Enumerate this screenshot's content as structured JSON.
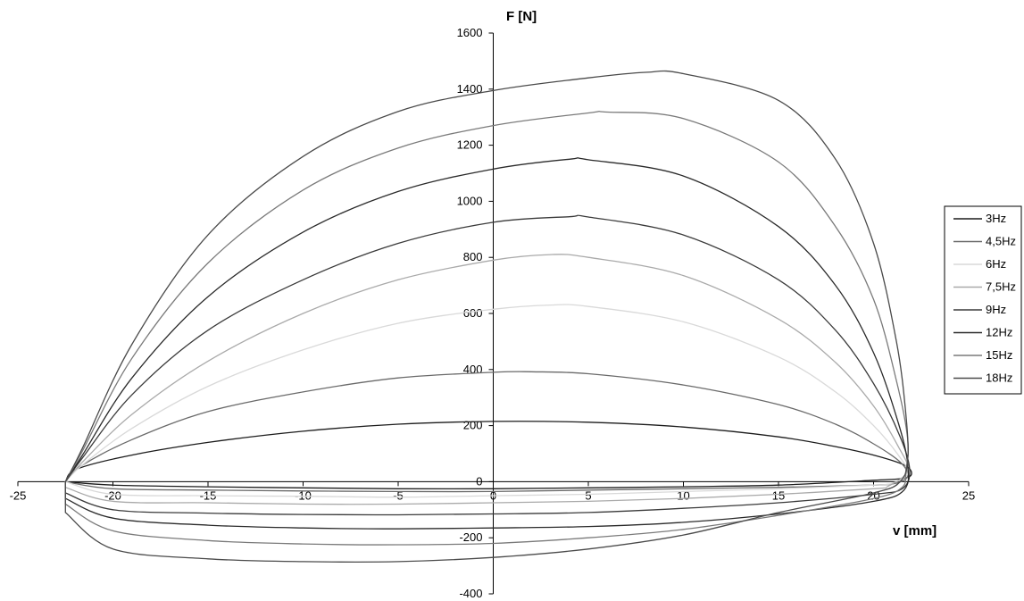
{
  "chart_data": {
    "type": "line",
    "title": "",
    "xlabel": "v [mm]",
    "ylabel": "F [N]",
    "xlim": [
      -25,
      25
    ],
    "ylim": [
      -400,
      1600
    ],
    "xticks": [
      -25,
      -20,
      -15,
      -10,
      -5,
      0,
      5,
      10,
      15,
      20,
      25
    ],
    "yticks": [
      -400,
      -200,
      0,
      200,
      400,
      600,
      800,
      1000,
      1200,
      1400,
      1600
    ],
    "grid": false,
    "legend_position": "right",
    "series": [
      {
        "name": "3Hz",
        "color": "#1c1c1c",
        "x": [
          -22.5,
          -21.9,
          -19,
          -15,
          -10,
          -5,
          0,
          5,
          10,
          15,
          18,
          20,
          21.6,
          22,
          21.6,
          20,
          15,
          10,
          5,
          0,
          -5,
          -10,
          -15,
          -20,
          -22.5
        ],
        "y": [
          0,
          45,
          95,
          140,
          180,
          205,
          215,
          212,
          195,
          160,
          125,
          95,
          60,
          30,
          12,
          5,
          -12,
          -18,
          -22,
          -25,
          -25,
          -22,
          -18,
          -12,
          0
        ]
      },
      {
        "name": "4,5Hz",
        "color": "#6a6a6a",
        "x": [
          -22.5,
          -21.7,
          -19,
          -15,
          -10,
          -5,
          0,
          2,
          5,
          10,
          15,
          18,
          20,
          21.4,
          21.8,
          21.2,
          20,
          15,
          10,
          5,
          0,
          -5,
          -10,
          -15,
          -20,
          -22.5
        ],
        "y": [
          0,
          55,
          150,
          250,
          320,
          370,
          390,
          392,
          385,
          345,
          275,
          205,
          135,
          70,
          20,
          -5,
          -12,
          -20,
          -25,
          -30,
          -35,
          -35,
          -33,
          -30,
          -25,
          0
        ]
      },
      {
        "name": "6Hz",
        "color": "#d9d9d9",
        "x": [
          -22.5,
          -21.6,
          -19,
          -15,
          -10,
          -5,
          0,
          3,
          5,
          10,
          15,
          18,
          20,
          21.3,
          21.8,
          21,
          20,
          15,
          10,
          5,
          0,
          -5,
          -10,
          -15,
          -20,
          -22.5
        ],
        "y": [
          0,
          60,
          190,
          340,
          470,
          565,
          615,
          630,
          625,
          570,
          445,
          320,
          200,
          95,
          30,
          -5,
          -12,
          -25,
          -35,
          -45,
          -50,
          -55,
          -52,
          -50,
          -45,
          0
        ]
      },
      {
        "name": "7,5Hz",
        "color": "#aaaaaa",
        "x": [
          -22.5,
          -21.6,
          -19,
          -15,
          -10,
          -5,
          0,
          3,
          5,
          10,
          15,
          18,
          20,
          21.3,
          21.8,
          20.8,
          20,
          15,
          10,
          5,
          0,
          -5,
          -10,
          -15,
          -20,
          -22.5
        ],
        "y": [
          0,
          70,
          240,
          430,
          600,
          720,
          790,
          810,
          800,
          735,
          580,
          425,
          270,
          125,
          40,
          -15,
          -25,
          -45,
          -60,
          -70,
          -75,
          -80,
          -80,
          -75,
          -70,
          -20
        ]
      },
      {
        "name": "9Hz",
        "color": "#3a3a3a",
        "x": [
          -22.5,
          -21.6,
          -19,
          -15,
          -10,
          -5,
          0,
          4,
          5,
          10,
          15,
          18,
          20,
          21.4,
          21.9,
          21.5,
          20,
          15,
          10,
          5,
          0,
          -5,
          -10,
          -15,
          -20,
          -22.5
        ],
        "y": [
          0,
          85,
          310,
          540,
          720,
          850,
          925,
          945,
          944,
          880,
          720,
          540,
          350,
          160,
          40,
          -25,
          -45,
          -75,
          -95,
          -110,
          -115,
          -118,
          -117,
          -112,
          -100,
          -40
        ]
      },
      {
        "name": "12Hz",
        "color": "#2a2a2a",
        "x": [
          -22.5,
          -21.6,
          -19,
          -15,
          -10,
          -5,
          0,
          4,
          5,
          10,
          15,
          18,
          20,
          21.3,
          21.8,
          21.6,
          20,
          15,
          10,
          5,
          0,
          -5,
          -10,
          -15,
          -20,
          -22.5
        ],
        "y": [
          0,
          95,
          370,
          660,
          890,
          1035,
          1115,
          1150,
          1148,
          1090,
          910,
          700,
          460,
          210,
          60,
          -30,
          -70,
          -115,
          -145,
          -160,
          -165,
          -168,
          -165,
          -155,
          -130,
          -60
        ]
      },
      {
        "name": "15Hz",
        "color": "#7a7a7a",
        "x": [
          -22.5,
          -21.6,
          -19,
          -15,
          -10,
          -5,
          0,
          5,
          6,
          10,
          15,
          18,
          20,
          21.2,
          21.8,
          21.7,
          21.5,
          20,
          15,
          10,
          5,
          0,
          -5,
          -10,
          -15,
          -20,
          -22.5
        ],
        "y": [
          0,
          110,
          440,
          780,
          1040,
          1190,
          1270,
          1315,
          1318,
          1295,
          1140,
          910,
          650,
          360,
          150,
          40,
          -20,
          -60,
          -120,
          -170,
          -200,
          -220,
          -225,
          -222,
          -210,
          -175,
          -80
        ]
      },
      {
        "name": "18Hz",
        "color": "#4a4a4a",
        "x": [
          -22.5,
          -21.6,
          -19,
          -15,
          -10,
          -5,
          0,
          5,
          8,
          10,
          15,
          18,
          20,
          21.2,
          21.7,
          21.8,
          21.4,
          20,
          15,
          10,
          5,
          0,
          -5,
          -10,
          -15,
          -20,
          -22.5
        ],
        "y": [
          0,
          120,
          490,
          880,
          1160,
          1320,
          1395,
          1440,
          1460,
          1455,
          1360,
          1150,
          850,
          500,
          240,
          80,
          0,
          -40,
          -110,
          -190,
          -240,
          -270,
          -285,
          -285,
          -275,
          -240,
          -110
        ]
      }
    ]
  }
}
